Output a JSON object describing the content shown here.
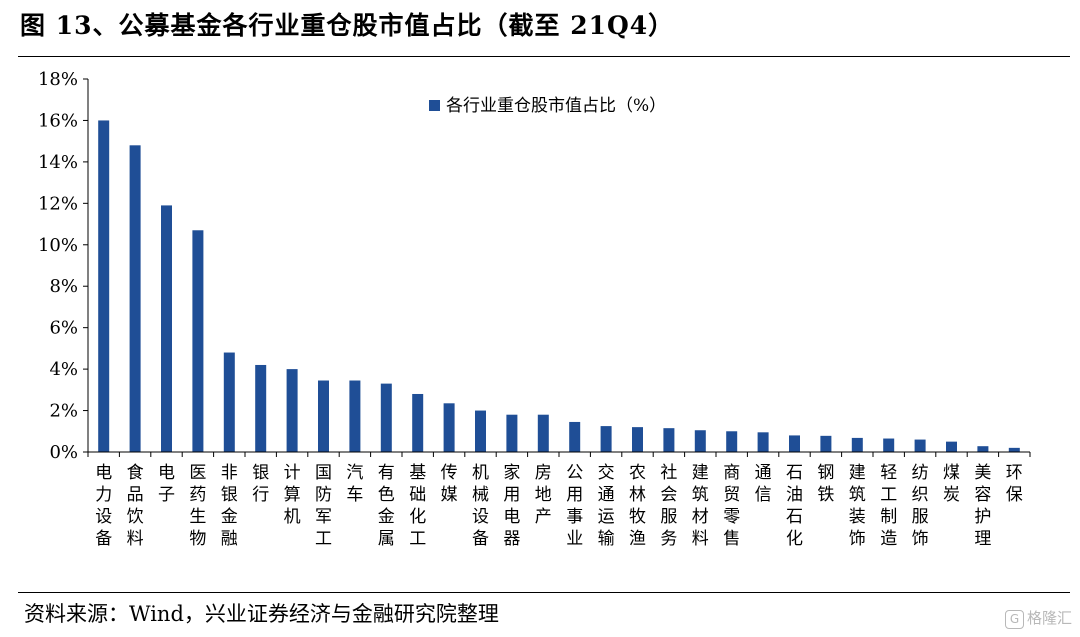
{
  "page": {
    "title": "图 13、公募基金各行业重仓股市值占比（截至 21Q4）",
    "source": "资料来源：Wind，兴业证券经济与金融研究院整理",
    "watermark": "格隆汇"
  },
  "chart_data": {
    "type": "bar",
    "title": "",
    "xlabel": "",
    "ylabel": "",
    "ylim": [
      0,
      18
    ],
    "yticks": [
      0,
      2,
      4,
      6,
      8,
      10,
      12,
      14,
      16,
      18
    ],
    "ytick_format": "{v}%",
    "grid": false,
    "legend_position": "top-center",
    "series": [
      {
        "name": "各行业重仓股市值占比（%）",
        "color": "#1f4e96",
        "values": [
          16.0,
          14.8,
          11.9,
          10.7,
          4.8,
          4.2,
          4.0,
          3.45,
          3.45,
          3.3,
          2.8,
          2.35,
          2.0,
          1.8,
          1.8,
          1.45,
          1.25,
          1.2,
          1.15,
          1.05,
          1.0,
          0.95,
          0.8,
          0.78,
          0.68,
          0.65,
          0.6,
          0.5,
          0.28,
          0.2
        ]
      }
    ],
    "categories": [
      "电力设备",
      "食品饮料",
      "电子",
      "医药生物",
      "非银金融",
      "银行",
      "计算机",
      "国防军工",
      "汽车",
      "有色金属",
      "基础化工",
      "传媒",
      "机械设备",
      "家用电器",
      "房地产",
      "公用事业",
      "交通运输",
      "农林牧渔",
      "社会服务",
      "建筑材料",
      "商贸零售",
      "通信",
      "石油石化",
      "钢铁",
      "建筑装饰",
      "轻工制造",
      "纺织服饰",
      "煤炭",
      "美容护理",
      "环保"
    ]
  }
}
